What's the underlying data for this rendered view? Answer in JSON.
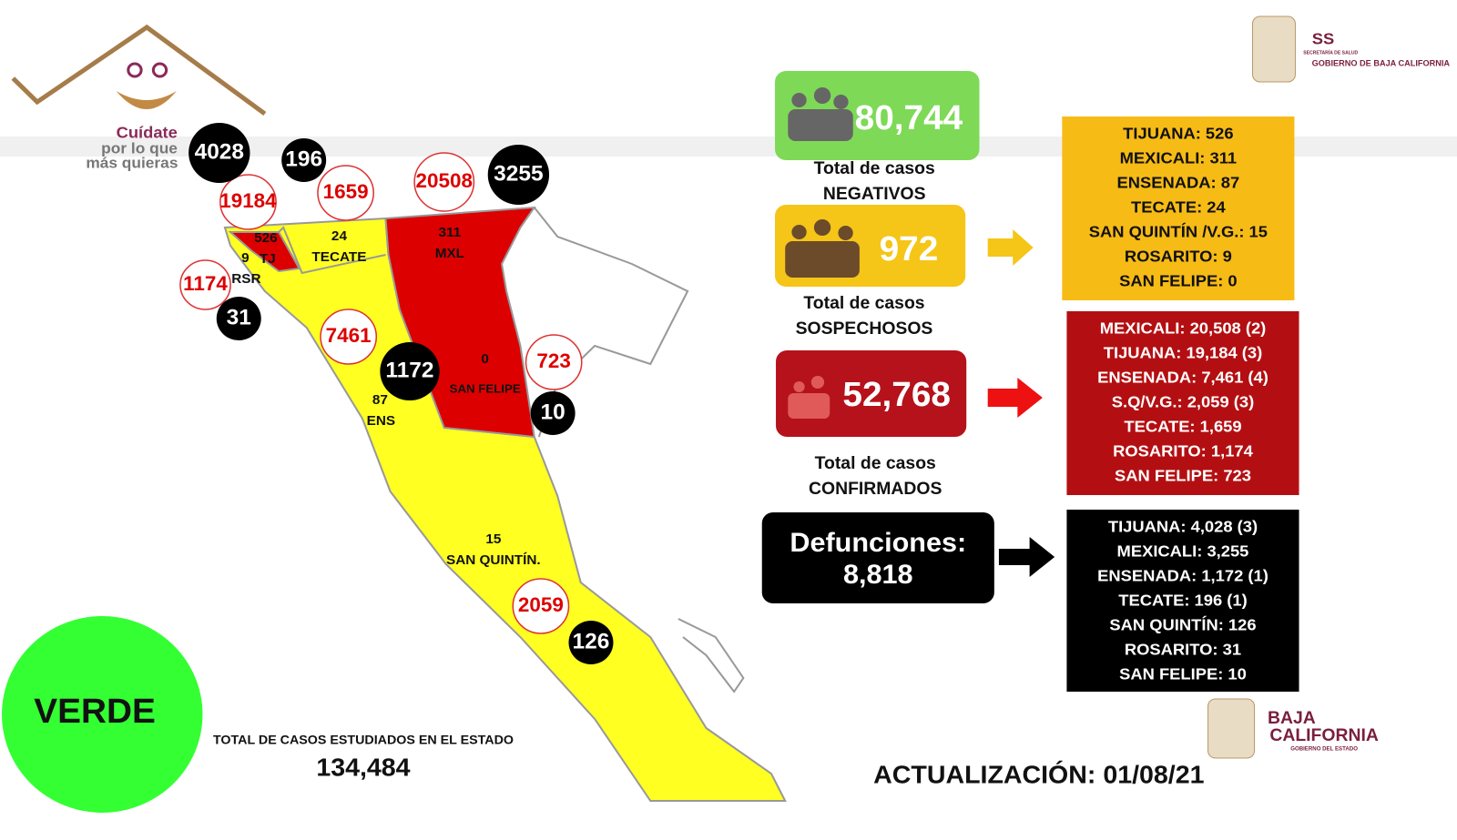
{
  "logo": {
    "line1": "Cuídate",
    "line2": "por lo que",
    "line3": "más quieras"
  },
  "header_logo": {
    "abbr": "SS",
    "subtitle": "SECRETARÍA DE SALUD",
    "org": "GOBIERNO DE BAJA CALIFORNIA"
  },
  "map": {
    "regions": [
      {
        "cases": "526",
        "name": "TJ"
      },
      {
        "cases": "24",
        "name": "TECATE"
      },
      {
        "cases": "311",
        "name": "MXL"
      },
      {
        "cases": "9",
        "name": "RSR"
      },
      {
        "cases": "87",
        "name": "ENS"
      },
      {
        "cases": "0",
        "name": "SAN FELIPE"
      },
      {
        "cases": "15",
        "name": "SAN QUINTÍN."
      }
    ],
    "confirmed_circles": [
      "19184",
      "1659",
      "20508",
      "1174",
      "7461",
      "723",
      "2059"
    ],
    "death_circles": [
      "4028",
      "196",
      "3255",
      "31",
      "1172",
      "10",
      "126"
    ]
  },
  "negatives": {
    "value": "80,744",
    "label": "Total de casos",
    "sublabel": "NEGATIVOS"
  },
  "suspected": {
    "value": "972",
    "label": "Total de casos",
    "sublabel": "SOSPECHOSOS",
    "breakdown": [
      "TIJUANA: 526",
      "MEXICALI: 311",
      "ENSENADA: 87",
      "TECATE: 24",
      "SAN QUINTÍN /V.G.: 15",
      "ROSARITO: 9",
      "SAN FELIPE: 0"
    ]
  },
  "confirmed": {
    "value": "52,768",
    "label": "Total de casos",
    "sublabel": "CONFIRMADOS",
    "breakdown": [
      "MEXICALI: 20,508 (2)",
      "TIJUANA: 19,184 (3)",
      "ENSENADA: 7,461 (4)",
      "S.Q/V.G.: 2,059 (3)",
      "TECATE: 1,659",
      "ROSARITO: 1,174",
      "SAN FELIPE: 723"
    ]
  },
  "deaths": {
    "label": "Defunciones:",
    "value": "8,818",
    "breakdown": [
      "TIJUANA: 4,028 (3)",
      "MEXICALI: 3,255",
      "ENSENADA: 1,172 (1)",
      "TECATE: 196 (1)",
      "SAN QUINTÍN: 126",
      "ROSARITO: 31",
      "SAN FELIPE: 10"
    ]
  },
  "status": "VERDE",
  "total": {
    "label": "TOTAL DE CASOS ESTUDIADOS EN EL ESTADO",
    "value": "134,484"
  },
  "update": "ACTUALIZACIÓN: 01/08/21",
  "footer_logo": {
    "line1": "BAJA",
    "line2": "CALIFORNIA",
    "line3": "GOBIERNO DEL ESTADO"
  }
}
